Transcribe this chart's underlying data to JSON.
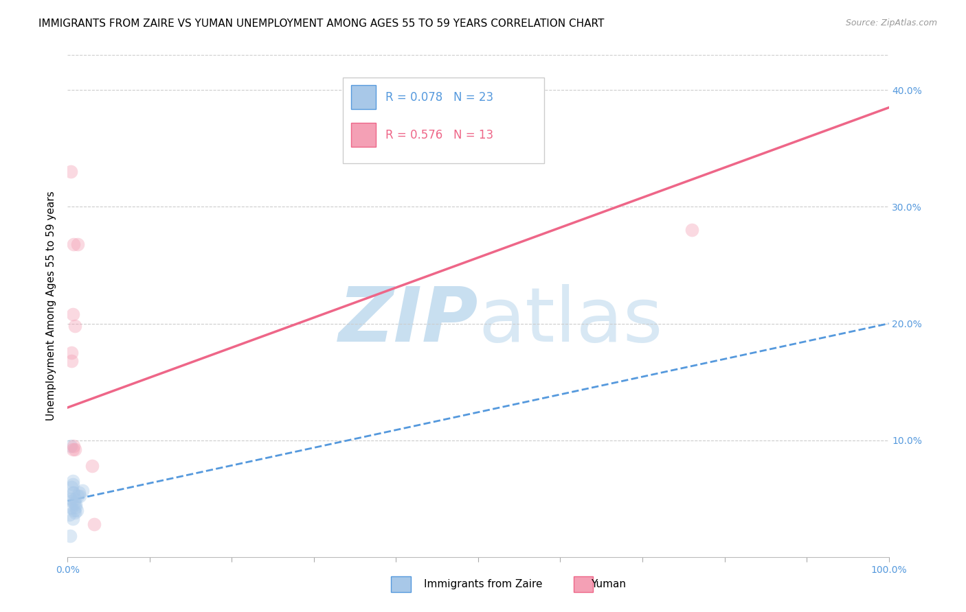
{
  "title": "IMMIGRANTS FROM ZAIRE VS YUMAN UNEMPLOYMENT AMONG AGES 55 TO 59 YEARS CORRELATION CHART",
  "source": "Source: ZipAtlas.com",
  "ylabel": "Unemployment Among Ages 55 to 59 years",
  "watermark": "ZIPatlas",
  "xlim": [
    0.0,
    1.0
  ],
  "ylim": [
    0.0,
    0.43
  ],
  "xticks": [
    0.0,
    0.1,
    0.2,
    0.3,
    0.4,
    0.5,
    0.6,
    0.7,
    0.8,
    0.9,
    1.0
  ],
  "xticklabels": [
    "0.0%",
    "",
    "",
    "",
    "",
    "",
    "",
    "",
    "",
    "",
    "100.0%"
  ],
  "yticks": [
    0.0,
    0.1,
    0.2,
    0.3,
    0.4
  ],
  "yticklabels": [
    "",
    "10.0%",
    "20.0%",
    "30.0%",
    "40.0%"
  ],
  "blue_scatter_x": [
    0.005,
    0.007,
    0.004,
    0.009,
    0.005,
    0.006,
    0.006,
    0.008,
    0.003,
    0.01,
    0.009,
    0.006,
    0.014,
    0.012,
    0.018,
    0.004,
    0.01,
    0.002,
    0.005,
    0.006,
    0.008,
    0.011,
    0.015
  ],
  "blue_scatter_y": [
    0.048,
    0.055,
    0.05,
    0.038,
    0.042,
    0.065,
    0.062,
    0.04,
    0.018,
    0.045,
    0.05,
    0.033,
    0.055,
    0.052,
    0.057,
    0.095,
    0.043,
    0.036,
    0.06,
    0.055,
    0.046,
    0.04,
    0.052
  ],
  "pink_scatter_x": [
    0.004,
    0.006,
    0.009,
    0.005,
    0.007,
    0.03,
    0.032,
    0.006,
    0.009,
    0.76,
    0.012,
    0.007,
    0.005
  ],
  "pink_scatter_y": [
    0.33,
    0.208,
    0.198,
    0.168,
    0.095,
    0.078,
    0.028,
    0.092,
    0.092,
    0.28,
    0.268,
    0.268,
    0.175
  ],
  "blue_line_x": [
    0.0,
    1.0
  ],
  "blue_line_y": [
    0.048,
    0.2
  ],
  "pink_line_x": [
    0.0,
    1.0
  ],
  "pink_line_y": [
    0.128,
    0.385
  ],
  "blue_color": "#a8c8e8",
  "pink_color": "#f4a0b5",
  "blue_line_color": "#5599dd",
  "pink_line_color": "#ee6688",
  "legend_r_blue": "R = 0.078",
  "legend_n_blue": "N = 23",
  "legend_r_pink": "R = 0.576",
  "legend_n_pink": "N = 13",
  "legend_label_blue": "Immigrants from Zaire",
  "legend_label_pink": "Yuman",
  "title_fontsize": 11,
  "axis_label_fontsize": 11,
  "tick_fontsize": 10,
  "scatter_size": 200,
  "scatter_alpha": 0.4,
  "grid_color": "#cccccc",
  "background_color": "#ffffff",
  "watermark_color": "#ddeeff",
  "watermark_fontsize": 80
}
